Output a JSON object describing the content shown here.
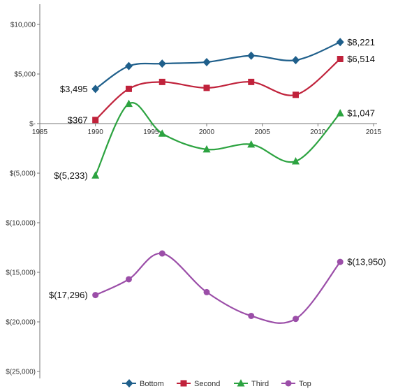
{
  "chart_data": {
    "type": "line",
    "title": "",
    "xlabel": "",
    "ylabel": "",
    "xlim": [
      1985,
      2015
    ],
    "ylim": [
      -25000,
      10000
    ],
    "x_ticks": [
      1985,
      1990,
      1995,
      2000,
      2005,
      2010,
      2015
    ],
    "x_tick_labels": [
      "1985",
      "1990",
      "1995",
      "2000",
      "2005",
      "2010",
      "2015"
    ],
    "y_ticks": [
      10000,
      5000,
      0,
      -5000,
      -10000,
      -15000,
      -20000,
      -25000
    ],
    "y_tick_labels": [
      "$10,000",
      "$5,000",
      "$-",
      "$(5,000)",
      "$(10,000)",
      "$(15,000)",
      "$(20,000)",
      "$(25,000)"
    ],
    "grid": false,
    "legend_position": "bottom",
    "smooth": true,
    "series": [
      {
        "name": "Bottom",
        "color": "#1f5f8b",
        "marker": "diamond",
        "x": [
          1990,
          1993,
          1996,
          2000,
          2004,
          2008,
          2012
        ],
        "y": [
          3495,
          5800,
          6050,
          6200,
          6850,
          6400,
          8221
        ],
        "labels": [
          {
            "index": 0,
            "text": "$3,495",
            "side": "left"
          },
          {
            "index": 6,
            "text": "$8,221",
            "side": "right"
          }
        ]
      },
      {
        "name": "Second",
        "color": "#c0223b",
        "marker": "square",
        "x": [
          1990,
          1993,
          1996,
          2000,
          2004,
          2008,
          2012
        ],
        "y": [
          367,
          3500,
          4200,
          3600,
          4200,
          2900,
          6514
        ],
        "labels": [
          {
            "index": 0,
            "text": "$367",
            "side": "left"
          },
          {
            "index": 6,
            "text": "$6,514",
            "side": "right"
          }
        ]
      },
      {
        "name": "Third",
        "color": "#2ca340",
        "marker": "triangle",
        "x": [
          1990,
          1993,
          1996,
          2000,
          2004,
          2008,
          2012
        ],
        "y": [
          -5233,
          2000,
          -1000,
          -2600,
          -2100,
          -3800,
          1047
        ],
        "labels": [
          {
            "index": 0,
            "text": "$(5,233)",
            "side": "left"
          },
          {
            "index": 6,
            "text": "$1,047",
            "side": "right"
          }
        ]
      },
      {
        "name": "Top",
        "color": "#9b4ea8",
        "marker": "circle",
        "x": [
          1990,
          1993,
          1996,
          2000,
          2004,
          2008,
          2012
        ],
        "y": [
          -17296,
          -15700,
          -13100,
          -17000,
          -19400,
          -19700,
          -13950
        ],
        "labels": [
          {
            "index": 0,
            "text": "$(17,296)",
            "side": "left"
          },
          {
            "index": 6,
            "text": "$(13,950)",
            "side": "right"
          }
        ]
      }
    ]
  }
}
